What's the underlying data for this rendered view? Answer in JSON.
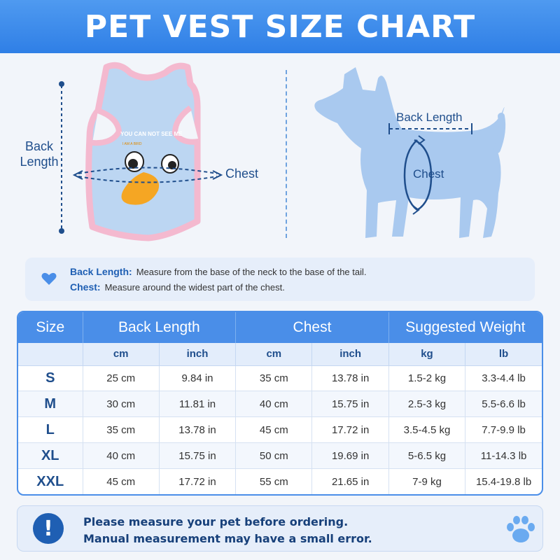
{
  "title": "PET VEST SIZE CHART",
  "illustration": {
    "vest_labels": {
      "back_length": "Back\nLength",
      "back_length_l1": "Back",
      "back_length_l2": "Length",
      "chest": "Chest"
    },
    "vest_print": {
      "line1": "YOU CAN NOT SEE ME",
      "line2": "I AM A BIRD"
    },
    "dog_labels": {
      "back_length": "Back Length",
      "chest": "Chest"
    }
  },
  "info": {
    "back_length_term": "Back Length:",
    "back_length_desc": "Measure from the base of the neck to the base of the tail.",
    "chest_term": "Chest:",
    "chest_desc": "Measure around the widest part of the chest."
  },
  "table": {
    "group_headers": [
      "Size",
      "Back Length",
      "Chest",
      "Suggested Weight"
    ],
    "unit_headers": [
      "cm",
      "inch",
      "cm",
      "inch",
      "kg",
      "lb"
    ],
    "rows": [
      {
        "size": "S",
        "back_cm": "25 cm",
        "back_in": "9.84 in",
        "chest_cm": "35 cm",
        "chest_in": "13.78 in",
        "kg": "1.5-2 kg",
        "lb": "3.3-4.4 lb"
      },
      {
        "size": "M",
        "back_cm": "30 cm",
        "back_in": "11.81 in",
        "chest_cm": "40 cm",
        "chest_in": "15.75 in",
        "kg": "2.5-3 kg",
        "lb": "5.5-6.6 lb"
      },
      {
        "size": "L",
        "back_cm": "35 cm",
        "back_in": "13.78 in",
        "chest_cm": "45 cm",
        "chest_in": "17.72 in",
        "kg": "3.5-4.5 kg",
        "lb": "7.7-9.9 lb"
      },
      {
        "size": "XL",
        "back_cm": "40 cm",
        "back_in": "15.75 in",
        "chest_cm": "50 cm",
        "chest_in": "19.69 in",
        "kg": "5-6.5 kg",
        "lb": "11-14.3 lb"
      },
      {
        "size": "XXL",
        "back_cm": "45 cm",
        "back_in": "17.72 in",
        "chest_cm": "55 cm",
        "chest_in": "21.65 in",
        "kg": "7-9 kg",
        "lb": "15.4-19.8 lb"
      }
    ]
  },
  "note": {
    "badge": "!",
    "line1": "Please measure your pet before ordering.",
    "line2": "Manual measurement may have a small error."
  },
  "colors": {
    "banner": "#3d8cee",
    "accent": "#1f5fb3",
    "vest": "#bcd6f2",
    "vest_trim": "#f4b9cf",
    "dog": "#a9c9ef"
  }
}
